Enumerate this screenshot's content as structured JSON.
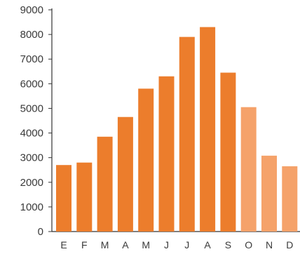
{
  "chart_data": {
    "type": "bar",
    "categories": [
      "E",
      "F",
      "M",
      "A",
      "M",
      "J",
      "J",
      "A",
      "S",
      "O",
      "N",
      "D"
    ],
    "values": [
      2700,
      2800,
      3850,
      4650,
      5800,
      6300,
      7900,
      8300,
      6450,
      5050,
      3080,
      2650
    ],
    "ylim": [
      0,
      9000
    ],
    "yticks": [
      0,
      1000,
      2000,
      3000,
      4000,
      5000,
      6000,
      7000,
      8000,
      9000
    ],
    "grid": false,
    "colors": {
      "main": "#ec7d2c",
      "light": "#f5a26a",
      "axis": "#333333"
    },
    "bar_color_keys": [
      "main",
      "main",
      "main",
      "main",
      "main",
      "main",
      "main",
      "main",
      "main",
      "light",
      "light",
      "light"
    ]
  }
}
